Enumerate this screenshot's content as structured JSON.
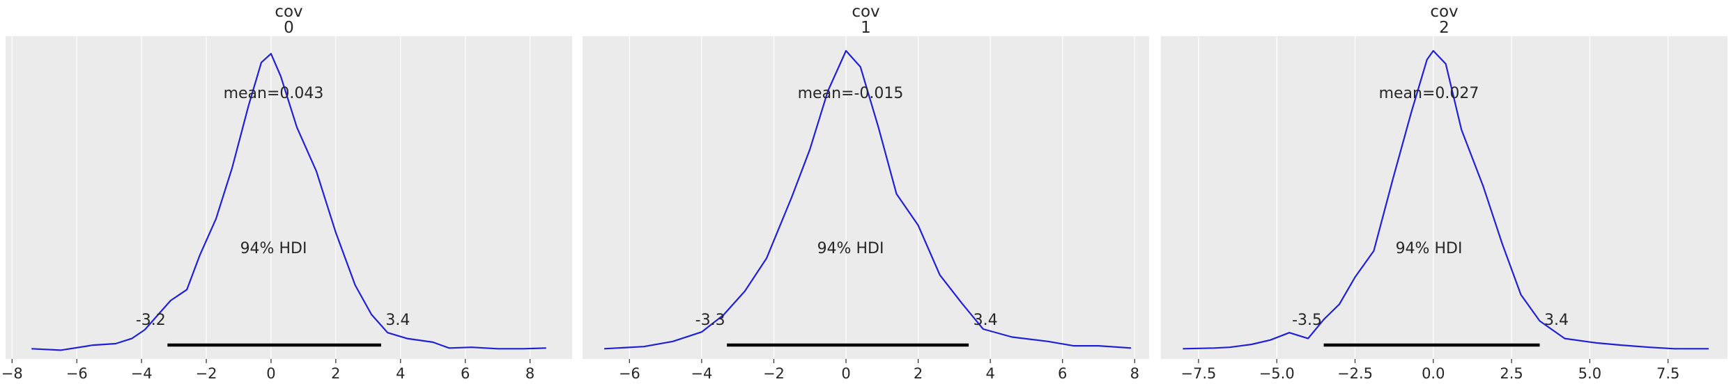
{
  "colors": {
    "kde_line": "#1f1fd6",
    "panel_bg": "#ebebeb",
    "hdi_line": "#000000"
  },
  "chart_data": [
    {
      "type": "line",
      "kind": "kde-density",
      "title_var": "cov",
      "title_idx": "0",
      "mean_label": "mean=0.043",
      "hdi_label": "94% HDI",
      "hdi": [
        -3.2,
        3.4
      ],
      "hdi_low_label": "-3.2",
      "hdi_high_label": "3.4",
      "xlim": [
        -8.2,
        9.3
      ],
      "ylim": [
        -0.012,
        0.43
      ],
      "xticks": [
        -8,
        -6,
        -4,
        -2,
        0,
        2,
        4,
        6,
        8
      ],
      "xtick_labels": [
        "−8",
        "−6",
        "−4",
        "−2",
        "0",
        "2",
        "4",
        "6",
        "8"
      ],
      "x": [
        -7.4,
        -6.5,
        -5.5,
        -4.8,
        -4.3,
        -3.9,
        -3.5,
        -3.1,
        -2.6,
        -2.2,
        -1.7,
        -1.2,
        -0.7,
        -0.3,
        0.0,
        0.3,
        0.8,
        1.4,
        2.0,
        2.6,
        3.1,
        3.6,
        4.2,
        5.0,
        5.5,
        6.2,
        7.0,
        7.8,
        8.5
      ],
      "y": [
        0.002,
        0.0,
        0.007,
        0.009,
        0.016,
        0.028,
        0.048,
        0.068,
        0.083,
        0.13,
        0.18,
        0.25,
        0.334,
        0.394,
        0.406,
        0.375,
        0.305,
        0.245,
        0.161,
        0.089,
        0.049,
        0.024,
        0.016,
        0.011,
        0.003,
        0.004,
        0.002,
        0.002,
        0.003
      ]
    },
    {
      "type": "line",
      "kind": "kde-density",
      "title_var": "cov",
      "title_idx": "1",
      "mean_label": "mean=-0.015",
      "hdi_label": "94% HDI",
      "hdi": [
        -3.3,
        3.4
      ],
      "hdi_low_label": "-3.3",
      "hdi_high_label": "3.4",
      "xlim": [
        -7.3,
        8.4
      ],
      "ylim": [
        -0.012,
        0.43
      ],
      "xticks": [
        -6,
        -4,
        -2,
        0,
        2,
        4,
        6,
        8
      ],
      "xtick_labels": [
        "−6",
        "−4",
        "−2",
        "0",
        "2",
        "4",
        "6",
        "8"
      ],
      "x": [
        -6.7,
        -5.6,
        -4.8,
        -4.0,
        -3.4,
        -2.8,
        -2.2,
        -1.5,
        -1.0,
        -0.5,
        0.0,
        0.4,
        0.9,
        1.4,
        2.0,
        2.6,
        3.2,
        3.8,
        4.6,
        5.6,
        6.3,
        7.0,
        7.9
      ],
      "y": [
        0.002,
        0.005,
        0.012,
        0.025,
        0.048,
        0.081,
        0.126,
        0.21,
        0.275,
        0.355,
        0.41,
        0.388,
        0.305,
        0.214,
        0.171,
        0.103,
        0.065,
        0.029,
        0.018,
        0.012,
        0.006,
        0.006,
        0.003
      ]
    },
    {
      "type": "line",
      "kind": "kde-density",
      "title_var": "cov",
      "title_idx": "2",
      "mean_label": "mean=0.027",
      "hdi_label": "94% HDI",
      "hdi": [
        -3.5,
        3.4
      ],
      "hdi_low_label": "-3.5",
      "hdi_high_label": "3.4",
      "xlim": [
        -8.7,
        9.4
      ],
      "ylim": [
        -0.012,
        0.43
      ],
      "xticks": [
        -7.5,
        -5.0,
        -2.5,
        0.0,
        2.5,
        5.0,
        7.5
      ],
      "xtick_labels": [
        "−7.5",
        "−5.0",
        "−2.5",
        "0.0",
        "2.5",
        "5.0",
        "7.5"
      ],
      "x": [
        -8.0,
        -7.0,
        -6.5,
        -5.8,
        -5.2,
        -4.6,
        -4.0,
        -3.5,
        -3.0,
        -2.5,
        -1.9,
        -1.3,
        -0.7,
        -0.2,
        0.0,
        0.4,
        0.9,
        1.6,
        2.2,
        2.8,
        3.4,
        4.2,
        5.2,
        6.0,
        6.9,
        7.7,
        8.8
      ],
      "y": [
        0.002,
        0.003,
        0.004,
        0.008,
        0.014,
        0.024,
        0.016,
        0.042,
        0.063,
        0.1,
        0.136,
        0.233,
        0.326,
        0.398,
        0.41,
        0.392,
        0.302,
        0.224,
        0.146,
        0.076,
        0.04,
        0.016,
        0.01,
        0.007,
        0.004,
        0.002,
        0.002
      ]
    }
  ]
}
